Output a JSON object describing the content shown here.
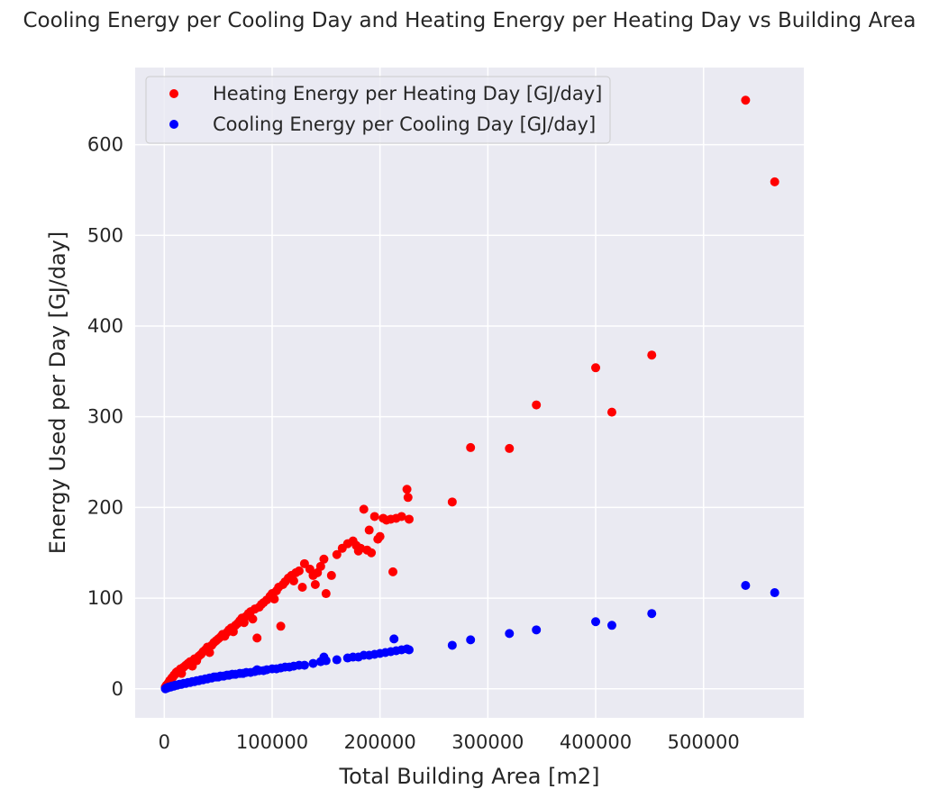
{
  "chart_data": {
    "type": "scatter",
    "title": "Cooling Energy per Cooling Day and Heating Energy per Heating Day vs Building Area",
    "xlabel": "Total Building Area [m2]",
    "ylabel": "Energy Used per Day [GJ/day]",
    "xlim": [
      -27000,
      593000
    ],
    "ylim": [
      -32,
      685
    ],
    "xticks": [
      0,
      100000,
      200000,
      300000,
      400000,
      500000
    ],
    "xtick_labels": [
      "0",
      "100000",
      "200000",
      "300000",
      "400000",
      "500000"
    ],
    "yticks": [
      0,
      100,
      200,
      300,
      400,
      500,
      600
    ],
    "ytick_labels": [
      "0",
      "100",
      "200",
      "300",
      "400",
      "500",
      "600"
    ],
    "grid": true,
    "background": "#eaeaf2",
    "legend_position": "upper-left",
    "series": [
      {
        "name": "Heating Energy per Heating Day [GJ/day]",
        "color": "#ff0000",
        "points": [
          [
            1000,
            2
          ],
          [
            2000,
            4
          ],
          [
            3000,
            5
          ],
          [
            4000,
            7
          ],
          [
            5000,
            9
          ],
          [
            6000,
            10
          ],
          [
            7000,
            12
          ],
          [
            8000,
            13
          ],
          [
            9000,
            15
          ],
          [
            10000,
            16
          ],
          [
            11000,
            18
          ],
          [
            12000,
            19
          ],
          [
            14000,
            20
          ],
          [
            15000,
            22
          ],
          [
            16000,
            17
          ],
          [
            18000,
            24
          ],
          [
            20000,
            26
          ],
          [
            22000,
            28
          ],
          [
            24000,
            30
          ],
          [
            26000,
            25
          ],
          [
            28000,
            33
          ],
          [
            30000,
            31
          ],
          [
            32000,
            36
          ],
          [
            34000,
            38
          ],
          [
            36000,
            41
          ],
          [
            38000,
            43
          ],
          [
            40000,
            46
          ],
          [
            42000,
            40
          ],
          [
            44000,
            48
          ],
          [
            46000,
            51
          ],
          [
            48000,
            53
          ],
          [
            50000,
            55
          ],
          [
            52000,
            57
          ],
          [
            54000,
            60
          ],
          [
            56000,
            58
          ],
          [
            58000,
            62
          ],
          [
            60000,
            65
          ],
          [
            62000,
            67
          ],
          [
            64000,
            63
          ],
          [
            66000,
            70
          ],
          [
            68000,
            72
          ],
          [
            70000,
            75
          ],
          [
            72000,
            78
          ],
          [
            74000,
            73
          ],
          [
            76000,
            80
          ],
          [
            78000,
            83
          ],
          [
            80000,
            85
          ],
          [
            82000,
            77
          ],
          [
            84000,
            88
          ],
          [
            86000,
            56
          ],
          [
            88000,
            90
          ],
          [
            90000,
            93
          ],
          [
            92000,
            95
          ],
          [
            95000,
            98
          ],
          [
            98000,
            102
          ],
          [
            100000,
            105
          ],
          [
            102000,
            99
          ],
          [
            104000,
            108
          ],
          [
            106000,
            112
          ],
          [
            108000,
            69
          ],
          [
            110000,
            115
          ],
          [
            112000,
            118
          ],
          [
            115000,
            122
          ],
          [
            118000,
            125
          ],
          [
            120000,
            119
          ],
          [
            122000,
            128
          ],
          [
            125000,
            130
          ],
          [
            128000,
            112
          ],
          [
            130000,
            138
          ],
          [
            135000,
            132
          ],
          [
            138000,
            125
          ],
          [
            140000,
            115
          ],
          [
            142000,
            128
          ],
          [
            145000,
            135
          ],
          [
            148000,
            143
          ],
          [
            150000,
            105
          ],
          [
            155000,
            125
          ],
          [
            160000,
            148
          ],
          [
            165000,
            155
          ],
          [
            170000,
            160
          ],
          [
            175000,
            163
          ],
          [
            178000,
            158
          ],
          [
            180000,
            152
          ],
          [
            182000,
            155
          ],
          [
            185000,
            198
          ],
          [
            188000,
            153
          ],
          [
            190000,
            175
          ],
          [
            192000,
            150
          ],
          [
            195000,
            190
          ],
          [
            198000,
            165
          ],
          [
            200000,
            168
          ],
          [
            203000,
            188
          ],
          [
            206000,
            186
          ],
          [
            210000,
            187
          ],
          [
            212000,
            129
          ],
          [
            215000,
            188
          ],
          [
            220000,
            190
          ],
          [
            225000,
            220
          ],
          [
            226000,
            211
          ],
          [
            227000,
            187
          ],
          [
            267000,
            206
          ],
          [
            284000,
            266
          ],
          [
            320000,
            265
          ],
          [
            345000,
            313
          ],
          [
            400000,
            354
          ],
          [
            415000,
            305
          ],
          [
            452000,
            368
          ],
          [
            539000,
            649
          ],
          [
            566000,
            559
          ]
        ]
      },
      {
        "name": "Cooling Energy per Cooling Day [GJ/day]",
        "color": "#0000ff",
        "points": [
          [
            1000,
            0
          ],
          [
            2000,
            1
          ],
          [
            3000,
            1
          ],
          [
            4000,
            2
          ],
          [
            5000,
            2
          ],
          [
            6000,
            2
          ],
          [
            7000,
            3
          ],
          [
            8000,
            3
          ],
          [
            9000,
            3
          ],
          [
            10000,
            4
          ],
          [
            11000,
            4
          ],
          [
            12000,
            4
          ],
          [
            14000,
            5
          ],
          [
            15000,
            5
          ],
          [
            16000,
            5
          ],
          [
            18000,
            6
          ],
          [
            20000,
            6
          ],
          [
            22000,
            7
          ],
          [
            24000,
            7
          ],
          [
            26000,
            8
          ],
          [
            28000,
            8
          ],
          [
            30000,
            9
          ],
          [
            32000,
            9
          ],
          [
            34000,
            10
          ],
          [
            36000,
            10
          ],
          [
            38000,
            11
          ],
          [
            40000,
            11
          ],
          [
            42000,
            12
          ],
          [
            44000,
            12
          ],
          [
            46000,
            13
          ],
          [
            48000,
            13
          ],
          [
            50000,
            13
          ],
          [
            52000,
            14
          ],
          [
            55000,
            14
          ],
          [
            58000,
            15
          ],
          [
            60000,
            15
          ],
          [
            63000,
            16
          ],
          [
            66000,
            16
          ],
          [
            70000,
            17
          ],
          [
            73000,
            17
          ],
          [
            76000,
            18
          ],
          [
            80000,
            18
          ],
          [
            84000,
            19
          ],
          [
            86000,
            21
          ],
          [
            88000,
            20
          ],
          [
            92000,
            20
          ],
          [
            95000,
            21
          ],
          [
            100000,
            22
          ],
          [
            104000,
            22
          ],
          [
            108000,
            23
          ],
          [
            112000,
            24
          ],
          [
            116000,
            24
          ],
          [
            120000,
            25
          ],
          [
            125000,
            26
          ],
          [
            130000,
            26
          ],
          [
            138000,
            28
          ],
          [
            145000,
            30
          ],
          [
            148000,
            35
          ],
          [
            150000,
            31
          ],
          [
            160000,
            32
          ],
          [
            170000,
            34
          ],
          [
            175000,
            35
          ],
          [
            180000,
            35
          ],
          [
            185000,
            37
          ],
          [
            190000,
            37
          ],
          [
            195000,
            38
          ],
          [
            200000,
            39
          ],
          [
            205000,
            40
          ],
          [
            210000,
            41
          ],
          [
            213000,
            55
          ],
          [
            215000,
            42
          ],
          [
            220000,
            43
          ],
          [
            225000,
            44
          ],
          [
            227000,
            43
          ],
          [
            267000,
            48
          ],
          [
            284000,
            54
          ],
          [
            320000,
            61
          ],
          [
            345000,
            65
          ],
          [
            400000,
            74
          ],
          [
            415000,
            70
          ],
          [
            452000,
            83
          ],
          [
            539000,
            114
          ],
          [
            566000,
            106
          ]
        ]
      }
    ]
  }
}
